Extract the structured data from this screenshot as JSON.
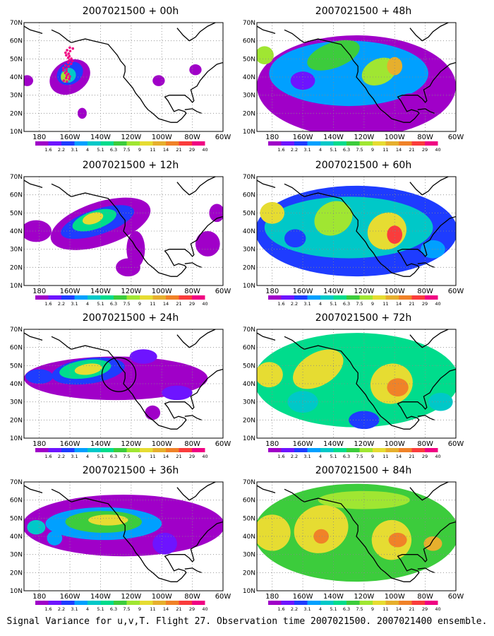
{
  "palette": [
    "#ffffff",
    "#a000c8",
    "#6e14ff",
    "#1e3cff",
    "#00a0ff",
    "#00c8c8",
    "#00dc8c",
    "#3ccc3c",
    "#a0e632",
    "#e6dc32",
    "#e6af2d",
    "#f08228",
    "#fa3c3c",
    "#f00082"
  ],
  "legend_labels": [
    "1.6",
    "2.2",
    "3.1",
    "4",
    "5.1",
    "6.3",
    "7.5",
    "9",
    "11",
    "14",
    "21",
    "29",
    "40"
  ],
  "lat_labels": [
    "70N",
    "60N",
    "50N",
    "40N",
    "30N",
    "20N",
    "10N"
  ],
  "lon_labels": [
    "180",
    "160W",
    "140W",
    "120W",
    "100W",
    "80W",
    "60W"
  ],
  "panels": [
    {
      "title": "2007021500 + 00h",
      "variant": "h00"
    },
    {
      "title": "2007021500 + 48h",
      "variant": "h48"
    },
    {
      "title": "2007021500 + 12h",
      "variant": "h12"
    },
    {
      "title": "2007021500 + 60h",
      "variant": "h60"
    },
    {
      "title": "2007021500 + 24h",
      "variant": "h24"
    },
    {
      "title": "2007021500 + 72h",
      "variant": "h72"
    },
    {
      "title": "2007021500 + 36h",
      "variant": "h36"
    },
    {
      "title": "2007021500 + 84h",
      "variant": "h84"
    }
  ],
  "caption": "Signal Variance for u,v,T. Flight 27. Observation time 2007021500. 2007021400 ensemble."
}
